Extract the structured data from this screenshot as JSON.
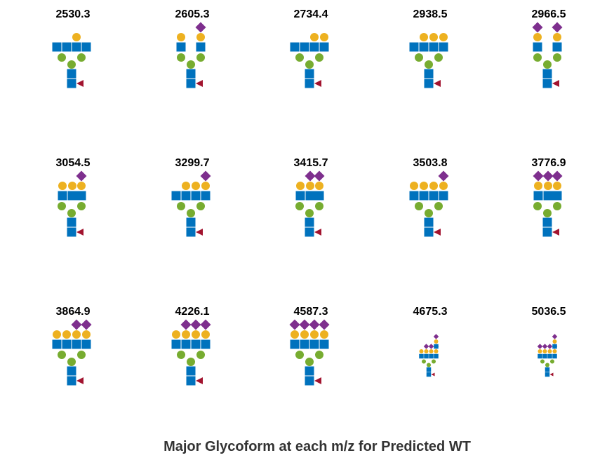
{
  "title": "Major Glycoform at each m/z for Predicted WT",
  "colors": {
    "hexnac": "#0072bd",
    "mannose": "#77ac30",
    "galactose": "#edb120",
    "sialic_acid": "#7e2f8e",
    "fucose": "#a2142f"
  },
  "panels": [
    {
      "mass": "2530.3",
      "antenna_count": 4,
      "gal": [
        0,
        0,
        1,
        0
      ],
      "sia": [
        0,
        0,
        0,
        0
      ],
      "small": false
    },
    {
      "mass": "2605.3",
      "antenna_count": 2,
      "gal": [
        1,
        1
      ],
      "sia": [
        0,
        1
      ],
      "small": false
    },
    {
      "mass": "2734.4",
      "antenna_count": 4,
      "gal": [
        0,
        0,
        1,
        1
      ],
      "sia": [
        0,
        0,
        0,
        0
      ],
      "small": false
    },
    {
      "mass": "2938.5",
      "antenna_count": 4,
      "gal": [
        0,
        1,
        1,
        1
      ],
      "sia": [
        0,
        0,
        0,
        0
      ],
      "small": false
    },
    {
      "mass": "2966.5",
      "antenna_count": 2,
      "gal": [
        1,
        1
      ],
      "sia": [
        1,
        1
      ],
      "small": false
    },
    {
      "mass": "3054.5",
      "antenna_count": 3,
      "gal": [
        1,
        1,
        1
      ],
      "sia": [
        0,
        0,
        1
      ],
      "small": false
    },
    {
      "mass": "3299.7",
      "antenna_count": 4,
      "gal": [
        0,
        1,
        1,
        1
      ],
      "sia": [
        0,
        0,
        0,
        1
      ],
      "small": false
    },
    {
      "mass": "3415.7",
      "antenna_count": 3,
      "gal": [
        1,
        1,
        1
      ],
      "sia": [
        0,
        1,
        1
      ],
      "small": false
    },
    {
      "mass": "3503.8",
      "antenna_count": 4,
      "gal": [
        1,
        1,
        1,
        1
      ],
      "sia": [
        0,
        0,
        0,
        1
      ],
      "small": false
    },
    {
      "mass": "3776.9",
      "antenna_count": 3,
      "gal": [
        1,
        1,
        1
      ],
      "sia": [
        1,
        1,
        1
      ],
      "small": false
    },
    {
      "mass": "3864.9",
      "antenna_count": 4,
      "gal": [
        1,
        1,
        1,
        1
      ],
      "sia": [
        0,
        0,
        1,
        1
      ],
      "small": false
    },
    {
      "mass": "4226.1",
      "antenna_count": 4,
      "gal": [
        1,
        1,
        1,
        1
      ],
      "sia": [
        0,
        1,
        1,
        1
      ],
      "small": false
    },
    {
      "mass": "4587.3",
      "antenna_count": 4,
      "gal": [
        1,
        1,
        1,
        1
      ],
      "sia": [
        1,
        1,
        1,
        1
      ],
      "small": false
    },
    {
      "mass": "4675.3",
      "antenna_count": 4,
      "gal": [
        1,
        1,
        1,
        1
      ],
      "sia": [
        0,
        1,
        1,
        1
      ],
      "small": true,
      "extension": {
        "hexnac": 1,
        "gal": 1,
        "sia": 1
      }
    },
    {
      "mass": "5036.5",
      "antenna_count": 4,
      "gal": [
        1,
        1,
        1,
        1
      ],
      "sia": [
        1,
        1,
        1,
        1
      ],
      "small": true,
      "extension": {
        "hexnac": 1,
        "gal": 1,
        "sia": 1
      }
    }
  ]
}
